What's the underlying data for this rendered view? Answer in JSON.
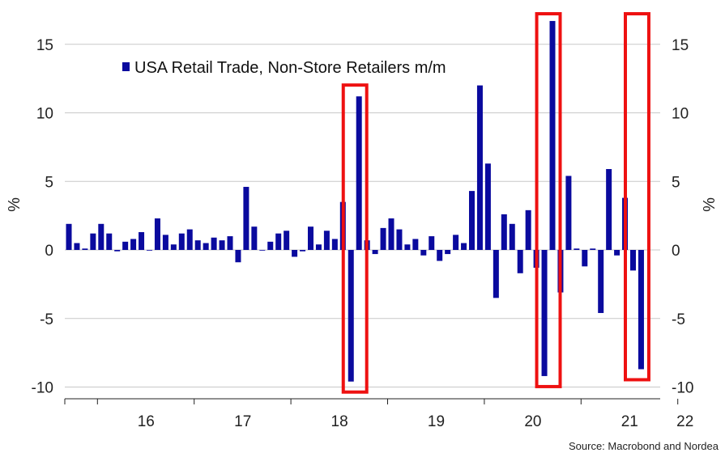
{
  "chart_data": {
    "type": "bar",
    "ylabel_left": "%",
    "ylabel_right": "%",
    "ylim": [
      -10.5,
      17
    ],
    "yticks": [
      15,
      10,
      5,
      0,
      -5,
      -10
    ],
    "ytick_labels": [
      "15",
      "10",
      "5",
      "0",
      "-5",
      "-10"
    ],
    "grid": true,
    "x_start": "2015-09",
    "xtick_labels": [
      "16",
      "17",
      "18",
      "19",
      "20",
      "21",
      "22"
    ],
    "series": [
      {
        "name": "USA Retail Trade, Non-Store Retailers m/m",
        "color": "#0a0a9e",
        "values": [
          1.9,
          0.5,
          0.1,
          1.2,
          1.9,
          1.2,
          -0.1,
          0.6,
          0.8,
          1.3,
          0.0,
          2.3,
          1.1,
          0.4,
          1.2,
          1.5,
          0.7,
          0.5,
          0.9,
          0.7,
          1.0,
          -0.9,
          4.6,
          1.7,
          0.0,
          0.6,
          1.2,
          1.4,
          -0.5,
          -0.1,
          1.7,
          0.4,
          1.4,
          0.8,
          3.5,
          -9.6,
          11.2,
          0.7,
          -0.3,
          1.6,
          2.3,
          1.5,
          0.4,
          0.8,
          -0.4,
          1.0,
          -0.8,
          -0.3,
          1.1,
          0.5,
          4.3,
          12.0,
          6.3,
          -3.5,
          2.6,
          1.9,
          -1.7,
          2.9,
          -1.3,
          -9.2,
          16.7,
          -3.1,
          5.4,
          0.1,
          -1.2,
          0.1,
          -4.6,
          5.9,
          -0.4,
          3.8,
          -1.5,
          -8.7
        ]
      }
    ],
    "highlight_color": "#ee1111",
    "highlight_bar_ranges": [
      [
        35,
        36
      ],
      [
        59,
        60
      ],
      [
        70,
        71
      ]
    ]
  },
  "source": "Source: Macrobond and Nordea"
}
